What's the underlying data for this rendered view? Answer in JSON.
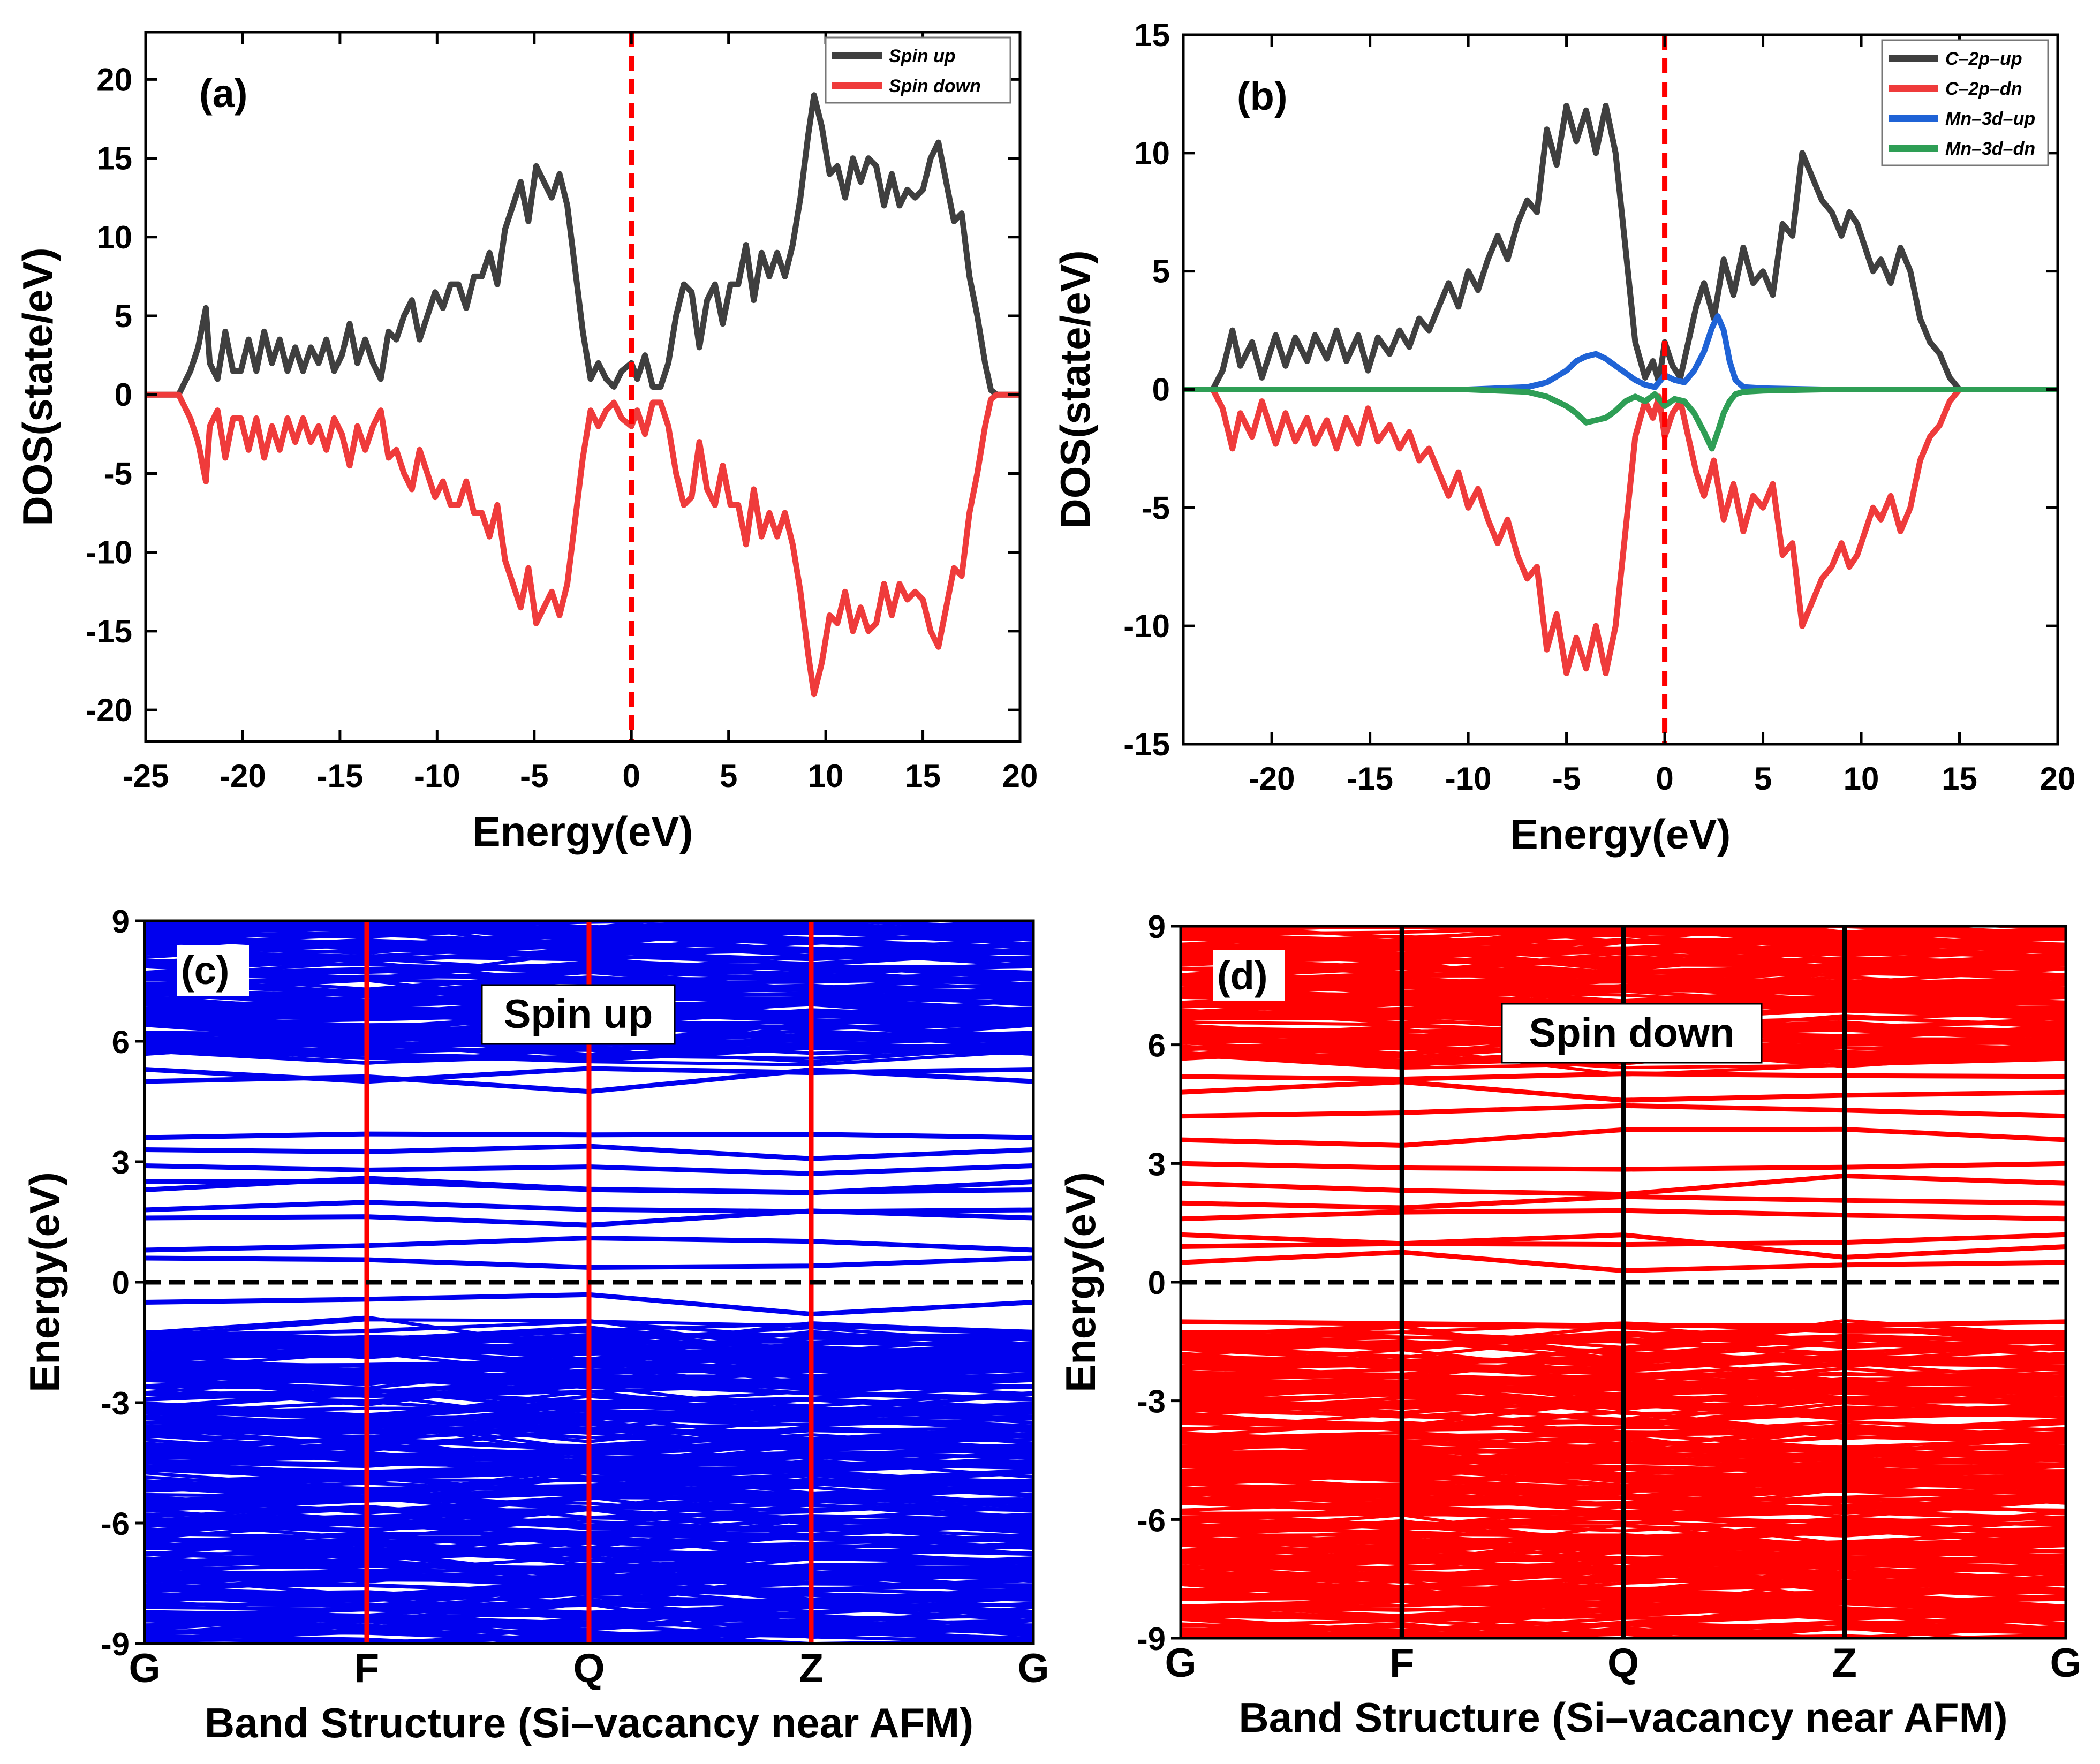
{
  "chart_data": [
    {
      "panel": "a",
      "type": "line",
      "panel_label": "(a)",
      "xlabel": "Energy(eV)",
      "ylabel": "DOS(state/eV)",
      "xlim": [
        -25,
        20
      ],
      "ylim": [
        -22,
        23
      ],
      "xticks": [
        -25,
        -20,
        -15,
        -10,
        -5,
        0,
        5,
        10,
        15,
        20
      ],
      "yticks": [
        -20,
        -15,
        -10,
        -5,
        0,
        5,
        10,
        15,
        20
      ],
      "fermi_level": 0,
      "fermi_color": "#ff0000",
      "legend_position": "top-right",
      "series": [
        {
          "name": "Spin up",
          "color": "#3f3f3f",
          "x": [
            -25,
            -23.3,
            -22.7,
            -22.3,
            -21.9,
            -21.7,
            -21.3,
            -20.9,
            -20.5,
            -20.1,
            -19.7,
            -19.3,
            -18.9,
            -18.5,
            -18.1,
            -17.7,
            -17.3,
            -16.9,
            -16.5,
            -16.1,
            -15.7,
            -15.3,
            -14.9,
            -14.5,
            -14.1,
            -13.7,
            -13.3,
            -12.9,
            -12.5,
            -12.1,
            -11.7,
            -11.3,
            -10.9,
            -10.5,
            -10.1,
            -9.7,
            -9.3,
            -8.9,
            -8.5,
            -8.1,
            -7.7,
            -7.3,
            -6.9,
            -6.5,
            -6.1,
            -5.7,
            -5.3,
            -4.9,
            -4.5,
            -4.1,
            -3.7,
            -3.3,
            -2.9,
            -2.5,
            -2.1,
            -1.7,
            -1.3,
            -0.9,
            -0.5,
            0,
            0.3,
            0.7,
            1.1,
            1.5,
            1.9,
            2.3,
            2.7,
            3.1,
            3.5,
            3.9,
            4.3,
            4.7,
            5.1,
            5.5,
            5.9,
            6.3,
            6.7,
            7.1,
            7.5,
            7.9,
            8.3,
            8.7,
            9.1,
            9.4,
            9.8,
            10.2,
            10.6,
            11,
            11.4,
            11.8,
            12.2,
            12.6,
            13,
            13.4,
            13.8,
            14.2,
            14.6,
            15,
            15.4,
            15.8,
            16.2,
            16.6,
            17,
            17.4,
            17.8,
            18.2,
            18.5,
            18.8,
            20
          ],
          "y": [
            0,
            0,
            1.5,
            3,
            5.5,
            2,
            1,
            4,
            1.5,
            1.5,
            3.5,
            1.5,
            4,
            2,
            3.5,
            1.5,
            3,
            1.5,
            3,
            2,
            3.5,
            1.5,
            2.5,
            4.5,
            2,
            3.5,
            2,
            1,
            4,
            3.5,
            5,
            6,
            3.5,
            5,
            6.5,
            5.5,
            7,
            7,
            5.5,
            7.5,
            7.5,
            9,
            7,
            10.5,
            12,
            13.5,
            11,
            14.5,
            13.5,
            12.5,
            14,
            12,
            8,
            4,
            1,
            2,
            1,
            0.5,
            1.5,
            2,
            1,
            2.5,
            0.5,
            0.5,
            2,
            5,
            7,
            6.5,
            3,
            6,
            7,
            4.5,
            7,
            7,
            9.5,
            6,
            9,
            7.5,
            9,
            7.5,
            9.5,
            12.5,
            16.5,
            19,
            17,
            14,
            14.5,
            12.5,
            15,
            13.5,
            15,
            14.5,
            12,
            14,
            12,
            13,
            12.5,
            13,
            15,
            16,
            13.5,
            11,
            11.5,
            7.5,
            5,
            2,
            0.3,
            0,
            0
          ]
        },
        {
          "name": "Spin down",
          "color": "#ef3b3b",
          "x": [
            -25,
            -23.3,
            -22.7,
            -22.3,
            -21.9,
            -21.7,
            -21.3,
            -20.9,
            -20.5,
            -20.1,
            -19.7,
            -19.3,
            -18.9,
            -18.5,
            -18.1,
            -17.7,
            -17.3,
            -16.9,
            -16.5,
            -16.1,
            -15.7,
            -15.3,
            -14.9,
            -14.5,
            -14.1,
            -13.7,
            -13.3,
            -12.9,
            -12.5,
            -12.1,
            -11.7,
            -11.3,
            -10.9,
            -10.5,
            -10.1,
            -9.7,
            -9.3,
            -8.9,
            -8.5,
            -8.1,
            -7.7,
            -7.3,
            -6.9,
            -6.5,
            -6.1,
            -5.7,
            -5.3,
            -4.9,
            -4.5,
            -4.1,
            -3.7,
            -3.3,
            -2.9,
            -2.5,
            -2.1,
            -1.7,
            -1.3,
            -0.9,
            -0.5,
            0,
            0.3,
            0.7,
            1.1,
            1.5,
            1.9,
            2.3,
            2.7,
            3.1,
            3.5,
            3.9,
            4.3,
            4.7,
            5.1,
            5.5,
            5.9,
            6.3,
            6.7,
            7.1,
            7.5,
            7.9,
            8.3,
            8.7,
            9.1,
            9.4,
            9.8,
            10.2,
            10.6,
            11,
            11.4,
            11.8,
            12.2,
            12.6,
            13,
            13.4,
            13.8,
            14.2,
            14.6,
            15,
            15.4,
            15.8,
            16.2,
            16.6,
            17,
            17.4,
            17.8,
            18.2,
            18.5,
            18.8,
            20
          ],
          "y": [
            0,
            0,
            -1.5,
            -3,
            -5.5,
            -2,
            -1,
            -4,
            -1.5,
            -1.5,
            -3.5,
            -1.5,
            -4,
            -2,
            -3.5,
            -1.5,
            -3,
            -1.5,
            -3,
            -2,
            -3.5,
            -1.5,
            -2.5,
            -4.5,
            -2,
            -3.5,
            -2,
            -1,
            -4,
            -3.5,
            -5,
            -6,
            -3.5,
            -5,
            -6.5,
            -5.5,
            -7,
            -7,
            -5.5,
            -7.5,
            -7.5,
            -9,
            -7,
            -10.5,
            -12,
            -13.5,
            -11,
            -14.5,
            -13.5,
            -12.5,
            -14,
            -12,
            -8,
            -4,
            -1,
            -2,
            -1,
            -0.5,
            -1.5,
            -2,
            -1,
            -2.5,
            -0.5,
            -0.5,
            -2,
            -5,
            -7,
            -6.5,
            -3,
            -6,
            -7,
            -4.5,
            -7,
            -7,
            -9.5,
            -6,
            -9,
            -7.5,
            -9,
            -7.5,
            -9.5,
            -12.5,
            -16.5,
            -19,
            -17,
            -14,
            -14.5,
            -12.5,
            -15,
            -13.5,
            -15,
            -14.5,
            -12,
            -14,
            -12,
            -13,
            -12.5,
            -13,
            -15,
            -16,
            -13.5,
            -11,
            -11.5,
            -7.5,
            -5,
            -2,
            -0.3,
            0,
            0
          ]
        }
      ]
    },
    {
      "panel": "b",
      "type": "line",
      "panel_label": "(b)",
      "xlabel": "Energy(eV)",
      "ylabel": "DOS(state/eV)",
      "xlim": [
        -24.5,
        20
      ],
      "ylim": [
        -15,
        15
      ],
      "xticks": [
        -20,
        -15,
        -10,
        -5,
        0,
        5,
        10,
        15,
        20
      ],
      "yticks": [
        -15,
        -10,
        -5,
        0,
        5,
        10,
        15
      ],
      "fermi_level": 0,
      "fermi_color": "#ff0000",
      "legend_position": "top-right",
      "series": [
        {
          "name": "C–2p–up",
          "color": "#3f3f3f",
          "x": [
            -24.5,
            -23,
            -22.5,
            -22,
            -21.6,
            -21,
            -20.5,
            -19.8,
            -19.3,
            -18.8,
            -18.2,
            -17.8,
            -17.2,
            -16.7,
            -16.2,
            -15.6,
            -15.1,
            -14.6,
            -14,
            -13.5,
            -13,
            -12.5,
            -12,
            -11.5,
            -11,
            -10.5,
            -10,
            -9.5,
            -9,
            -8.5,
            -8,
            -7.5,
            -7,
            -6.5,
            -6,
            -5.5,
            -5,
            -4.5,
            -4,
            -3.5,
            -3,
            -2.5,
            -2,
            -1.5,
            -1,
            -0.6,
            -0.3,
            0,
            0.4,
            0.8,
            1.2,
            1.6,
            2,
            2.5,
            3,
            3.5,
            4,
            4.5,
            5,
            5.5,
            6,
            6.5,
            7,
            7.5,
            8,
            8.5,
            9,
            9.4,
            9.8,
            10.2,
            10.6,
            11,
            11.5,
            12,
            12.5,
            13,
            13.5,
            14,
            14.5,
            15,
            15.5,
            16,
            16.5,
            17,
            17.5,
            18,
            18.5,
            20
          ],
          "y": [
            0,
            0,
            0.8,
            2.5,
            1,
            2,
            0.5,
            2.3,
            1,
            2.2,
            1.2,
            2.3,
            1.3,
            2.5,
            1.2,
            2.3,
            0.8,
            2.2,
            1.5,
            2.5,
            1.8,
            3,
            2.5,
            3.5,
            4.5,
            3.5,
            5,
            4.2,
            5.5,
            6.5,
            5.5,
            7,
            8,
            7.5,
            11,
            9.5,
            12,
            10.5,
            11.8,
            10,
            12,
            10,
            6,
            2,
            0.5,
            1.2,
            0.3,
            2,
            1,
            0.5,
            2,
            3.5,
            4.5,
            3,
            5.5,
            4,
            6,
            4.5,
            5,
            4,
            7,
            6.5,
            10,
            9,
            8,
            7.5,
            6.5,
            7.5,
            7,
            6,
            5,
            5.5,
            4.5,
            6,
            5,
            3,
            2,
            1.5,
            0.5,
            0,
            0,
            0,
            0,
            0,
            0,
            0,
            0,
            0
          ]
        },
        {
          "name": "C–2p–dn",
          "color": "#ef3b3b",
          "x": [
            -24.5,
            -23,
            -22.5,
            -22,
            -21.6,
            -21,
            -20.5,
            -19.8,
            -19.3,
            -18.8,
            -18.2,
            -17.8,
            -17.2,
            -16.7,
            -16.2,
            -15.6,
            -15.1,
            -14.6,
            -14,
            -13.5,
            -13,
            -12.5,
            -12,
            -11.5,
            -11,
            -10.5,
            -10,
            -9.5,
            -9,
            -8.5,
            -8,
            -7.5,
            -7,
            -6.5,
            -6,
            -5.5,
            -5,
            -4.5,
            -4,
            -3.5,
            -3,
            -2.5,
            -2,
            -1.5,
            -1,
            -0.6,
            -0.3,
            0,
            0.4,
            0.8,
            1.2,
            1.6,
            2,
            2.5,
            3,
            3.5,
            4,
            4.5,
            5,
            5.5,
            6,
            6.5,
            7,
            7.5,
            8,
            8.5,
            9,
            9.4,
            9.8,
            10.2,
            10.6,
            11,
            11.5,
            12,
            12.5,
            13,
            13.5,
            14,
            14.5,
            15,
            15.5,
            16,
            16.5,
            17,
            17.5,
            18,
            18.5,
            20
          ],
          "y": [
            0,
            0,
            -0.8,
            -2.5,
            -1,
            -2,
            -0.5,
            -2.3,
            -1,
            -2.2,
            -1.2,
            -2.3,
            -1.3,
            -2.5,
            -1.2,
            -2.3,
            -0.8,
            -2.2,
            -1.5,
            -2.5,
            -1.8,
            -3,
            -2.5,
            -3.5,
            -4.5,
            -3.5,
            -5,
            -4.2,
            -5.5,
            -6.5,
            -5.5,
            -7,
            -8,
            -7.5,
            -11,
            -9.5,
            -12,
            -10.5,
            -11.8,
            -10,
            -12,
            -10,
            -6,
            -2,
            -0.5,
            -1.2,
            -0.3,
            -2,
            -1,
            -0.5,
            -2,
            -3.5,
            -4.5,
            -3,
            -5.5,
            -4,
            -6,
            -4.5,
            -5,
            -4,
            -7,
            -6.5,
            -10,
            -9,
            -8,
            -7.5,
            -6.5,
            -7.5,
            -7,
            -6,
            -5,
            -5.5,
            -4.5,
            -6,
            -5,
            -3,
            -2,
            -1.5,
            -0.5,
            0,
            0,
            0,
            0,
            0,
            0,
            0,
            0,
            0
          ]
        },
        {
          "name": "Mn–3d–up",
          "color": "#1f63d6",
          "x": [
            -24.5,
            -10,
            -7,
            -6,
            -5,
            -4.5,
            -4,
            -3.5,
            -3,
            -2.5,
            -2,
            -1.5,
            -1,
            -0.5,
            0,
            0.5,
            1,
            1.5,
            2,
            2.4,
            2.7,
            3,
            3.3,
            3.6,
            4,
            5,
            8,
            20
          ],
          "y": [
            0,
            0,
            0.1,
            0.3,
            0.8,
            1.2,
            1.4,
            1.5,
            1.3,
            1,
            0.7,
            0.4,
            0.2,
            0.1,
            0.6,
            0.4,
            0.3,
            0.8,
            1.6,
            2.6,
            3.1,
            2.5,
            1.2,
            0.4,
            0.1,
            0.05,
            0,
            0
          ]
        },
        {
          "name": "Mn–3d–dn",
          "color": "#2e9e55",
          "x": [
            -24.5,
            -10,
            -7,
            -6,
            -5,
            -4.5,
            -4,
            -3.5,
            -3,
            -2.5,
            -2,
            -1.5,
            -1,
            -0.5,
            0,
            0.5,
            1,
            1.5,
            2,
            2.4,
            2.7,
            3,
            3.3,
            3.6,
            4,
            5,
            8,
            20
          ],
          "y": [
            0,
            0,
            -0.1,
            -0.3,
            -0.7,
            -1,
            -1.4,
            -1.3,
            -1.2,
            -0.9,
            -0.5,
            -0.3,
            -0.5,
            -0.2,
            -0.7,
            -0.4,
            -0.5,
            -1,
            -1.8,
            -2.5,
            -1.8,
            -1,
            -0.5,
            -0.2,
            -0.1,
            -0.05,
            0,
            0
          ]
        }
      ]
    },
    {
      "panel": "c",
      "type": "line",
      "chart_kind": "band structure",
      "panel_label": "(c)",
      "title": "Spin up",
      "xlabel": "Band Structure (Si–vacancy near AFM)",
      "ylabel": "Energy(eV)",
      "categories": [
        "G",
        "F",
        "Q",
        "Z",
        "G"
      ],
      "ylim": [
        -9,
        9
      ],
      "yticks": [
        -9,
        -6,
        -3,
        0,
        3,
        6,
        9
      ],
      "band_color": "#0000ee",
      "divider_color": "#ff0000",
      "fermi_level": 0,
      "band_levels_at_G": [
        8.6,
        8.2,
        7.7,
        7.2,
        6.7,
        6.2,
        5.9,
        5.3,
        5.0,
        3.6,
        3.3,
        2.9,
        2.5,
        2.3,
        1.8,
        1.6,
        0.8,
        0.6,
        -0.5,
        -1.3,
        -1.6,
        -2.0,
        -2.6,
        -3.2,
        -3.6,
        -4.1,
        -4.6,
        -5.0,
        -5.5,
        -6.0,
        -6.4,
        -7.0,
        -7.4,
        -7.9,
        -8.3,
        -8.7
      ]
    },
    {
      "panel": "d",
      "type": "line",
      "chart_kind": "band structure",
      "panel_label": "(d)",
      "title": "Spin down",
      "xlabel": "Band Structure (Si–vacancy near AFM)",
      "ylabel": "Energy(eV)",
      "categories": [
        "G",
        "F",
        "Q",
        "Z",
        "G"
      ],
      "ylim": [
        -9,
        9
      ],
      "yticks": [
        -9,
        -6,
        -3,
        0,
        3,
        6,
        9
      ],
      "band_color": "#ff0000",
      "divider_color": "#000000",
      "fermi_level": 0,
      "band_levels_at_G": [
        8.7,
        8.2,
        7.7,
        7.3,
        6.8,
        6.3,
        5.9,
        5.2,
        4.8,
        4.2,
        3.6,
        3.0,
        2.5,
        2.0,
        1.6,
        1.2,
        0.9,
        0.5,
        -1.0,
        -1.4,
        -1.9,
        -2.4,
        -3.0,
        -3.5,
        -4.0,
        -4.5,
        -5.0,
        -5.5,
        -6.0,
        -6.5,
        -7.0,
        -7.5,
        -8.0,
        -8.4,
        -8.8
      ]
    }
  ]
}
